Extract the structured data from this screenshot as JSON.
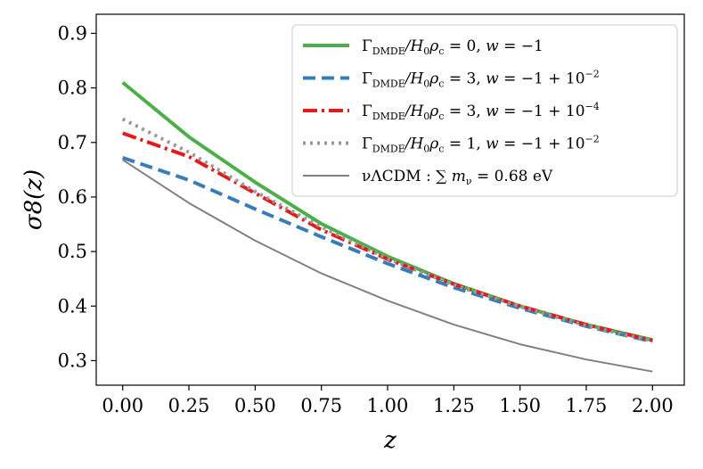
{
  "chart_data": {
    "type": "line",
    "xlabel": "z",
    "ylabel": "σ8(z)",
    "xlim": [
      -0.1,
      2.12
    ],
    "ylim": [
      0.255,
      0.935
    ],
    "xticks": [
      0.0,
      0.25,
      0.5,
      0.75,
      1.0,
      1.25,
      1.5,
      1.75,
      2.0
    ],
    "xtick_labels": [
      "0.00",
      "0.25",
      "0.50",
      "0.75",
      "1.00",
      "1.25",
      "1.50",
      "1.75",
      "2.00"
    ],
    "yticks": [
      0.3,
      0.4,
      0.5,
      0.6,
      0.7,
      0.8,
      0.9
    ],
    "ytick_labels": [
      "0.3",
      "0.4",
      "0.5",
      "0.6",
      "0.7",
      "0.8",
      "0.9"
    ],
    "grid": false,
    "legend_position": "top-right",
    "series": [
      {
        "id": "s1",
        "color": "#4daf4a",
        "dash": "solid",
        "width": 4,
        "legend_parts": [
          "Γ",
          "DMDE",
          "/H",
          "0",
          "ρ",
          "c",
          " = 0,  ",
          "w",
          " = −1"
        ],
        "x": [
          0.0,
          0.25,
          0.5,
          0.75,
          1.0,
          1.25,
          1.5,
          1.75,
          2.0
        ],
        "y": [
          0.81,
          0.71,
          0.627,
          0.551,
          0.491,
          0.441,
          0.4,
          0.366,
          0.338
        ]
      },
      {
        "id": "s2",
        "color": "#377eb8",
        "dash": "14,7",
        "width": 4,
        "legend_parts": [
          "Γ",
          "DMDE",
          "/H",
          "0",
          "ρ",
          "c",
          " = 3,  ",
          "w",
          " = −1 + 10",
          "−2"
        ],
        "x": [
          0.0,
          0.25,
          0.5,
          0.75,
          1.0,
          1.25,
          1.5,
          1.75,
          2.0
        ],
        "y": [
          0.672,
          0.631,
          0.578,
          0.527,
          0.478,
          0.434,
          0.396,
          0.363,
          0.335
        ]
      },
      {
        "id": "s3",
        "color": "#e41a1c",
        "dash": "16,5,3,5",
        "width": 4,
        "legend_parts": [
          "Γ",
          "DMDE",
          "/H",
          "0",
          "ρ",
          "c",
          " = 3,  ",
          "w",
          " = −1 + 10",
          "−4"
        ],
        "x": [
          0.0,
          0.25,
          0.5,
          0.75,
          1.0,
          1.25,
          1.5,
          1.75,
          2.0
        ],
        "y": [
          0.717,
          0.674,
          0.607,
          0.54,
          0.486,
          0.44,
          0.4,
          0.366,
          0.337
        ]
      },
      {
        "id": "s4",
        "color": "#999999",
        "dash": "3,5",
        "width": 4,
        "legend_parts": [
          "Γ",
          "DMDE",
          "/H",
          "0",
          "ρ",
          "c",
          " = 1,  ",
          "w",
          " = −1 + 10",
          "−2"
        ],
        "x": [
          0.0,
          0.25,
          0.5,
          0.75,
          1.0,
          1.25,
          1.5,
          1.75,
          2.0
        ],
        "y": [
          0.743,
          0.682,
          0.61,
          0.545,
          0.487,
          0.439,
          0.399,
          0.364,
          0.336
        ]
      },
      {
        "id": "s5",
        "color": "#808080",
        "dash": "solid",
        "width": 2,
        "legend_parts": [
          "νΛCDM :  ∑ ",
          "m",
          "ν",
          " = 0.68 eV"
        ],
        "x": [
          0.0,
          0.25,
          0.5,
          0.75,
          1.0,
          1.25,
          1.5,
          1.75,
          2.0
        ],
        "y": [
          0.668,
          0.589,
          0.52,
          0.46,
          0.41,
          0.366,
          0.33,
          0.302,
          0.28
        ]
      }
    ]
  }
}
